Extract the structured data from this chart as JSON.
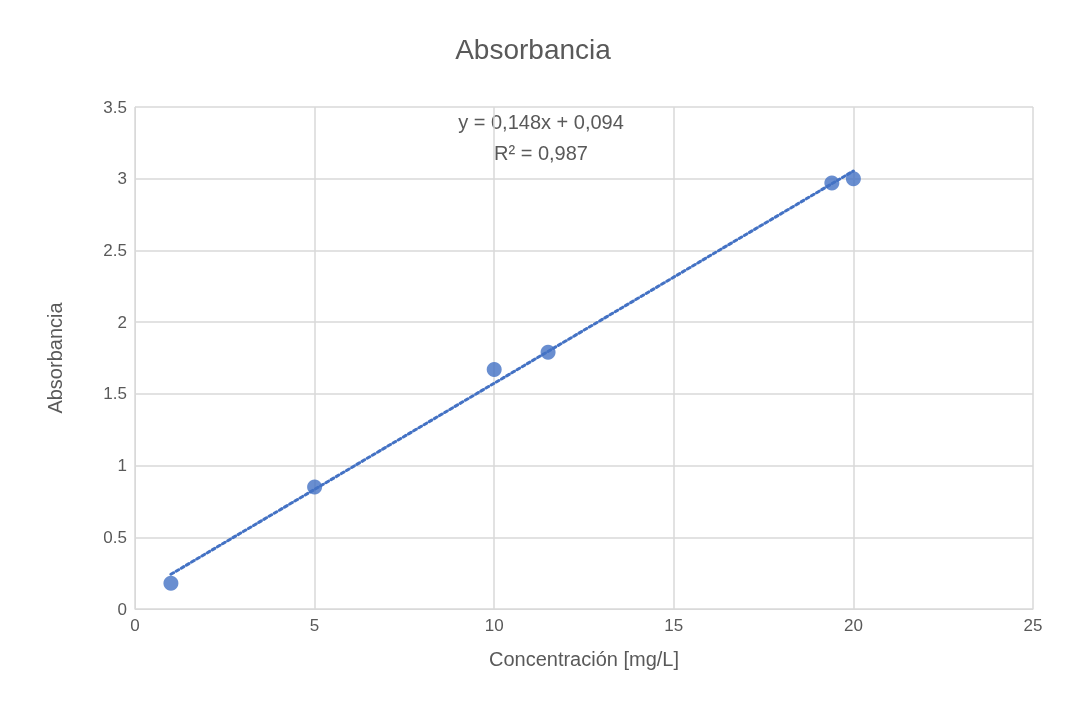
{
  "chart_data": {
    "type": "scatter",
    "title": "Absorbancia",
    "xlabel": "Concentración [mg/L]",
    "ylabel": "Absorbancia",
    "annotations": [
      "y = 0,148x + 0,094",
      "R² = 0,987"
    ],
    "series": [
      {
        "color": "#4472c4",
        "x": [
          1,
          5,
          10,
          11.5,
          19.4,
          20
        ],
        "values": [
          0.18,
          0.85,
          1.67,
          1.79,
          2.97,
          3.0
        ],
        "marker": "circle"
      },
      {
        "type": "line",
        "color": "#4472c4",
        "x": [
          1,
          20
        ],
        "values": [
          0.242,
          3.054
        ],
        "marker": "none",
        "line_style": "dotted"
      }
    ],
    "xlim": [
      0,
      25
    ],
    "xticks": [
      0,
      5,
      10,
      15,
      20,
      25
    ],
    "ylim": [
      0,
      3.5
    ],
    "yticks": [
      0,
      0.5,
      1,
      1.5,
      2,
      2.5,
      3,
      3.5
    ],
    "grid": true
  }
}
